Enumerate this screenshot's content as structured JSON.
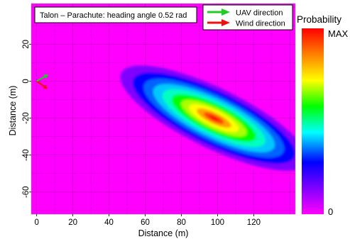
{
  "chart_data": {
    "type": "heatmap",
    "title": "Talon – Parachute: heading angle 0.52 rad",
    "xlabel": "Distance (m)",
    "ylabel": "Distance (m)",
    "xlim": [
      -3,
      143
    ],
    "ylim": [
      -72,
      42
    ],
    "x_ticks": [
      "0",
      "20",
      "40",
      "60",
      "80",
      "100",
      "120"
    ],
    "x_tick_values": [
      0,
      20,
      40,
      60,
      80,
      100,
      120
    ],
    "y_ticks": [
      "20",
      "0",
      "-20",
      "-40",
      "-60"
    ],
    "y_tick_values": [
      20,
      0,
      -20,
      -40,
      -60
    ],
    "grid": true,
    "distribution": {
      "peak_x": 98,
      "peak_y": -20,
      "major_axis_angle_deg": -26,
      "sigma_major_m": 19,
      "sigma_minor_m": 5.4,
      "contour_extent_x": [
        60,
        140
      ],
      "contour_extent_y": [
        -43,
        2
      ]
    },
    "arrows": {
      "origin": [
        0,
        0
      ],
      "uav_heading_rad": 0.52,
      "uav_color": "#22cc22",
      "wind_color": "#ee1111",
      "wind_angle_deg": -35
    },
    "legend": {
      "position": "top-right",
      "entries": [
        {
          "label": "UAV direction",
          "color": "#22cc22"
        },
        {
          "label": "Wind direction",
          "color": "#ee1111"
        }
      ]
    },
    "colorbar": {
      "label": "Probability",
      "max_label": "MAX",
      "min_label": "0",
      "stops": [
        "#ff00ff",
        "#8000ff",
        "#0000ff",
        "#00ffff",
        "#00ff00",
        "#ffff00",
        "#ff8000",
        "#ff0000"
      ]
    },
    "background_color": "#ff00ff"
  }
}
